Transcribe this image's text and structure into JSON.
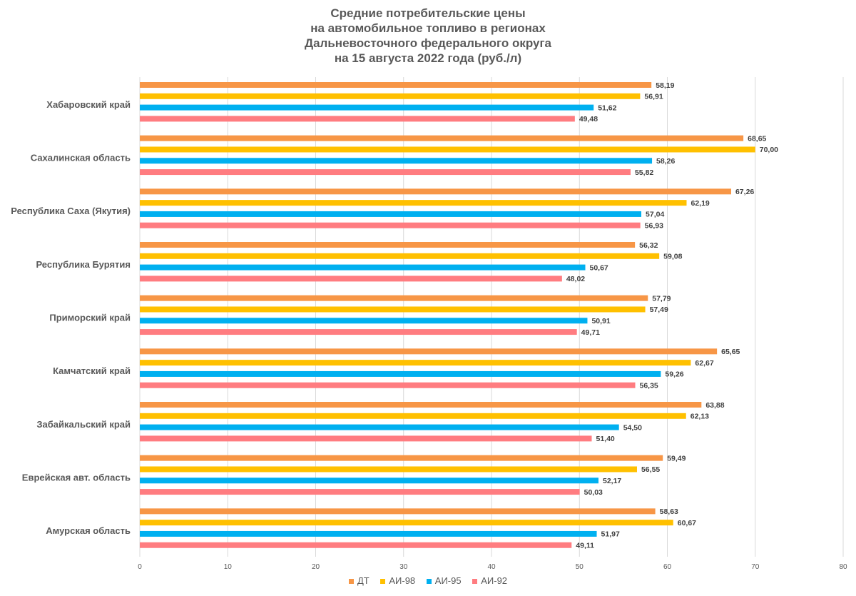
{
  "title_lines": [
    "Средние потребительские цены",
    "на автомобильное топливо в регионах",
    "Дальневосточного федерального округа",
    "на 15 августа 2022 года (руб./л)"
  ],
  "chart_data": {
    "type": "bar",
    "orientation": "horizontal",
    "title": "Средние потребительские цены на автомобильное топливо в регионах Дальневосточного федерального округа на 15 августа 2022 года (руб./л)",
    "categories": [
      "Хабаровский край",
      "Сахалинская область",
      "Республика Саха (Якутия)",
      "Республика Бурятия",
      "Приморский край",
      "Камчатский край",
      "Забайкальский край",
      "Еврейская авт. область",
      "Амурская область"
    ],
    "series": [
      {
        "name": "ДТ",
        "color": "#F79646",
        "values": [
          58.19,
          68.65,
          67.26,
          56.32,
          57.79,
          65.65,
          63.88,
          59.49,
          58.63
        ],
        "labels": [
          "58,19",
          "68,65",
          "67,26",
          "56,32",
          "57,79",
          "65,65",
          "63,88",
          "59,49",
          "58,63"
        ]
      },
      {
        "name": "АИ-98",
        "color": "#FFC000",
        "values": [
          56.91,
          70.0,
          62.19,
          59.08,
          57.49,
          62.67,
          62.13,
          56.55,
          60.67
        ],
        "labels": [
          "56,91",
          "70,00",
          "62,19",
          "59,08",
          "57,49",
          "62,67",
          "62,13",
          "56,55",
          "60,67"
        ]
      },
      {
        "name": "АИ-95",
        "color": "#00B0F0",
        "values": [
          51.62,
          58.26,
          57.04,
          50.67,
          50.91,
          59.26,
          54.5,
          52.17,
          51.97
        ],
        "labels": [
          "51,62",
          "58,26",
          "57,04",
          "50,67",
          "50,91",
          "59,26",
          "54,50",
          "52,17",
          "51,97"
        ]
      },
      {
        "name": "АИ-92",
        "color": "#FF7C80",
        "values": [
          49.48,
          55.82,
          56.93,
          48.02,
          49.71,
          56.35,
          51.4,
          50.03,
          49.11
        ],
        "labels": [
          "49,48",
          "55,82",
          "56,93",
          "48,02",
          "49,71",
          "56,35",
          "51,40",
          "50,03",
          "49,11"
        ]
      }
    ],
    "xlim": [
      0,
      80
    ],
    "xticks": [
      0,
      10,
      20,
      30,
      40,
      50,
      60,
      70,
      80
    ],
    "grid": "vertical",
    "legend": "bottom-center"
  }
}
